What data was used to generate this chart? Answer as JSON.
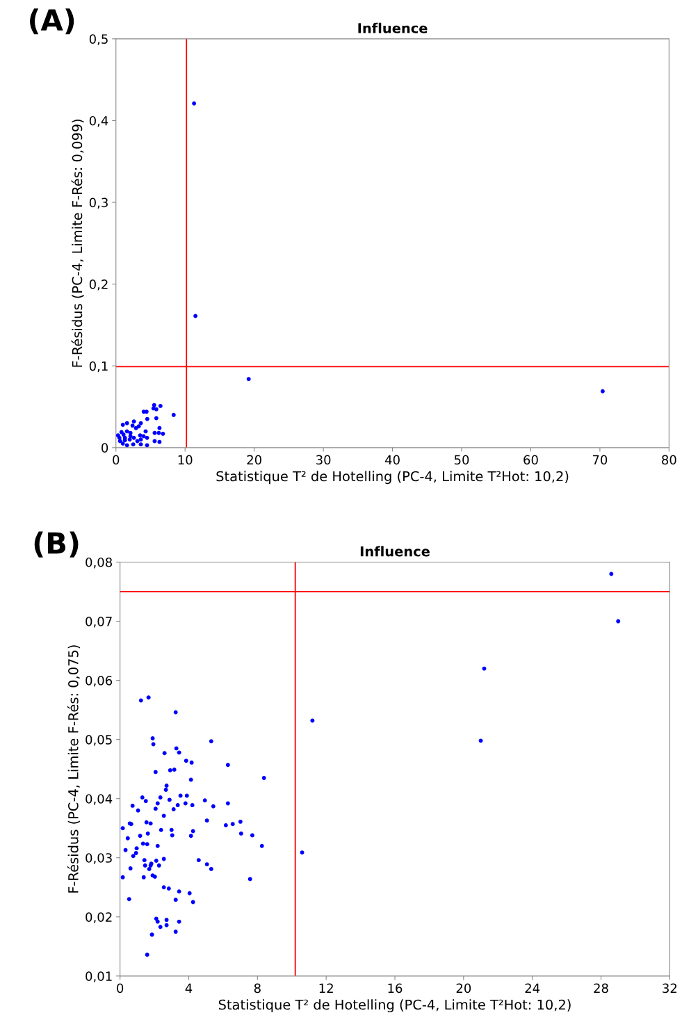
{
  "chart_data": [
    {
      "type": "scatter",
      "title": "Influence",
      "xlabel": "Statistique T² de Hotelling (PC-4, Limite T²Hot: 10,2)",
      "ylabel": "F-Résidus (PC-4, Limite F-Rés: 0,099)",
      "annotations": [
        "(A)"
      ],
      "xlim": [
        0,
        80
      ],
      "xticks": [
        0,
        10,
        20,
        30,
        40,
        50,
        60,
        70,
        80
      ],
      "ylim": [
        0,
        0.5
      ],
      "yticks": [
        {
          "value": 0,
          "label": "0"
        },
        {
          "value": 0.1,
          "label": "0,1"
        },
        {
          "value": 0.2,
          "label": "0,2"
        },
        {
          "value": 0.3,
          "label": "0,3"
        },
        {
          "value": 0.4,
          "label": "0,4"
        },
        {
          "value": 0.5,
          "label": "0,5"
        }
      ],
      "grid": false,
      "marker": "circle",
      "ref_lines": [
        {
          "axis": "x",
          "value": 10.2,
          "color": "#ff0000"
        },
        {
          "axis": "y",
          "value": 0.099,
          "color": "#ff0000"
        }
      ],
      "series": [
        {
          "color": "#0000ff",
          "x": [
            11.3,
            11.5,
            19.2,
            70.4,
            8.35,
            5.53,
            6.44,
            5.43,
            5.84,
            4.02,
            4.43,
            4.53,
            5.84,
            1.0,
            1.6,
            2.6,
            3.6,
            2.4,
            3.3,
            2.9,
            6.3,
            0.8,
            1.6,
            2.1,
            4.3,
            5.6,
            6.2,
            6.8,
            3.5,
            4.0,
            0.5,
            1.3,
            2.0,
            2.6,
            4.5,
            5.6,
            6.3,
            1.0,
            1.6,
            2.5,
            3.6,
            4.5,
            0.6,
            1.3,
            3.1,
            3.6,
            2.1,
            1.1,
            0.3
          ],
          "values": [
            0.421,
            0.161,
            0.084,
            0.069,
            0.04,
            0.052,
            0.051,
            0.048,
            0.047,
            0.044,
            0.044,
            0.035,
            0.036,
            0.028,
            0.03,
            0.032,
            0.03,
            0.027,
            0.026,
            0.024,
            0.024,
            0.019,
            0.02,
            0.018,
            0.02,
            0.018,
            0.018,
            0.017,
            0.015,
            0.014,
            0.012,
            0.012,
            0.01,
            0.012,
            0.012,
            0.008,
            0.007,
            0.005,
            0.003,
            0.004,
            0.004,
            0.003,
            0.008,
            0.009,
            0.008,
            0.01,
            0.014,
            0.016,
            0.015
          ]
        }
      ]
    },
    {
      "type": "scatter",
      "title": "Influence",
      "xlabel": "Statistique T² de Hotelling (PC-4, Limite T²Hot: 10,2)",
      "ylabel": "F-Résidus (PC-4, Limite F-Rés: 0,075)",
      "annotations": [
        "(B)"
      ],
      "xlim": [
        0,
        32
      ],
      "xticks": [
        0,
        4,
        8,
        12,
        16,
        20,
        24,
        28,
        32
      ],
      "ylim": [
        0.01,
        0.08
      ],
      "yticks": [
        {
          "value": 0.01,
          "label": "0,01"
        },
        {
          "value": 0.02,
          "label": "0,02"
        },
        {
          "value": 0.03,
          "label": "0,03"
        },
        {
          "value": 0.04,
          "label": "0,04"
        },
        {
          "value": 0.05,
          "label": "0,05"
        },
        {
          "value": 0.06,
          "label": "0,06"
        },
        {
          "value": 0.07,
          "label": "0,07"
        },
        {
          "value": 0.08,
          "label": "0,08"
        }
      ],
      "grid": false,
      "marker": "circle",
      "ref_lines": [
        {
          "axis": "x",
          "value": 10.2,
          "color": "#ff0000"
        },
        {
          "axis": "y",
          "value": 0.075,
          "color": "#ff0000"
        }
      ],
      "series": [
        {
          "color": "#0000ff",
          "x": [
            28.6,
            29.0,
            21.2,
            21.0,
            11.2,
            10.6,
            1.22,
            1.66,
            3.24,
            1.9,
            1.94,
            5.31,
            2.59,
            3.28,
            3.44,
            3.85,
            4.17,
            6.28,
            2.07,
            2.92,
            3.16,
            4.13,
            8.38,
            2.71,
            2.67,
            1.3,
            1.5,
            2.35,
            2.19,
            2.88,
            3.52,
            3.89,
            3.81,
            3.36,
            4.21,
            4.94,
            5.43,
            6.28,
            0.73,
            1.05,
            2.07,
            3.12,
            2.55,
            5.06,
            6.16,
            6.56,
            7.01,
            7.05,
            7.7,
            8.26,
            0.16,
            0.57,
            0.65,
            1.54,
            1.78,
            1.17,
            1.62,
            2.39,
            3.0,
            3.04,
            4.25,
            4.13,
            0.45,
            1.34,
            1.58,
            2.19,
            0.32,
            0.97,
            0.93,
            0.77,
            1.42,
            2.11,
            2.55,
            4.58,
            5.06,
            5.31,
            1.46,
            1.82,
            1.78,
            1.7,
            2.27,
            0.61,
            0.16,
            1.38,
            1.9,
            2.03,
            7.57,
            2.55,
            2.84,
            3.44,
            4.05,
            3.24,
            4.25,
            0.53,
            2.11,
            2.19,
            2.71,
            2.35,
            2.71,
            3.44,
            3.24,
            1.86,
            1.58
          ],
          "values": [
            0.078,
            0.07,
            0.062,
            0.0498,
            0.0532,
            0.0309,
            0.0566,
            0.0571,
            0.0546,
            0.0502,
            0.0492,
            0.0497,
            0.0477,
            0.0485,
            0.0478,
            0.0464,
            0.0461,
            0.0457,
            0.0445,
            0.0448,
            0.0449,
            0.0432,
            0.0435,
            0.0422,
            0.0415,
            0.0402,
            0.0396,
            0.0402,
            0.0392,
            0.0398,
            0.0405,
            0.0405,
            0.0392,
            0.0389,
            0.0389,
            0.0397,
            0.0387,
            0.0392,
            0.0388,
            0.038,
            0.0383,
            0.0382,
            0.0371,
            0.0363,
            0.0355,
            0.0357,
            0.0361,
            0.0341,
            0.0338,
            0.032,
            0.035,
            0.0358,
            0.0357,
            0.036,
            0.0358,
            0.0337,
            0.0341,
            0.0347,
            0.0347,
            0.0338,
            0.0345,
            0.0337,
            0.0333,
            0.0324,
            0.0323,
            0.032,
            0.0313,
            0.0316,
            0.0308,
            0.0303,
            0.0296,
            0.0295,
            0.0298,
            0.0296,
            0.0289,
            0.0281,
            0.0287,
            0.029,
            0.0287,
            0.0281,
            0.0287,
            0.0282,
            0.0267,
            0.0267,
            0.027,
            0.0268,
            0.0264,
            0.025,
            0.0248,
            0.0243,
            0.024,
            0.0229,
            0.0225,
            0.023,
            0.0197,
            0.0192,
            0.0195,
            0.0183,
            0.0186,
            0.0192,
            0.0175,
            0.017,
            0.0136
          ]
        }
      ]
    }
  ]
}
